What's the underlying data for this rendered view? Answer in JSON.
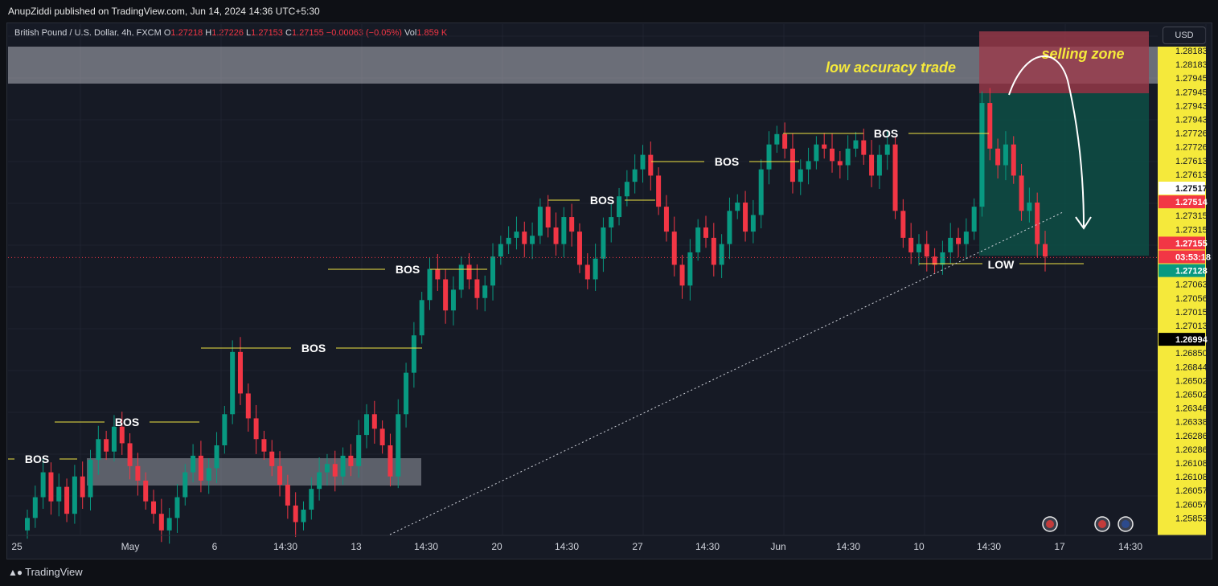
{
  "header": {
    "published": "AnupZiddi published on TradingView.com, Jun 14, 2024 14:36 UTC+5:30"
  },
  "legend": {
    "symbol": "British Pound / U.S. Dollar, 4h, FXCM",
    "o_label": "O",
    "o_value": "1.27218",
    "h_label": "H",
    "h_value": "1.27226",
    "l_label": "L",
    "l_value": "1.27153",
    "c_label": "C",
    "c_value": "1.27155",
    "change": "−0.00063 (−0.05%)",
    "vol_label": "Vol",
    "vol_value": "1.859 K"
  },
  "currency_button": "USD",
  "footer": {
    "brand": "TradingView"
  },
  "colors": {
    "up": "#089981",
    "down": "#f23645",
    "background": "#161a25",
    "annotation_yellow": "#f0e442",
    "label_yellow": "#f5e93b",
    "current_price_red": "#f23645",
    "teal_box": "#0d4f45",
    "red_box": "#9c3a4a"
  },
  "chart_data": {
    "type": "candlestick",
    "symbol": "British Pound / U.S. Dollar",
    "timeframe": "4h",
    "ylim": [
      1.2582,
      1.2828
    ],
    "x_ticks": [
      "25",
      "May",
      "6",
      "14:30",
      "13",
      "14:30",
      "20",
      "14:30",
      "27",
      "14:30",
      "Jun",
      "14:30",
      "10",
      "14:30",
      "17",
      "14:30"
    ],
    "price_labels": [
      "1.28183",
      "1.28183",
      "1.27945",
      "1.27945",
      "1.27943",
      "1.27943",
      "1.27726",
      "1.27726",
      "1.27613",
      "1.27613",
      "1.27517",
      "1.27514",
      "1.27315",
      "1.27315",
      "1.27155",
      "03:53:18",
      "1.27128",
      "1.27063",
      "1.27056",
      "1.27015",
      "1.27013",
      "1.26994",
      "1.26850",
      "1.26844",
      "1.26502",
      "1.26502",
      "1.26346",
      "1.26338",
      "1.26286",
      "1.26286",
      "1.26108",
      "1.26108",
      "1.26057",
      "1.26057",
      "1.25853"
    ],
    "current_price": 1.27155,
    "countdown": "03:53:18",
    "closes": [
      1.259,
      1.26,
      1.2612,
      1.2598,
      1.2605,
      1.2592,
      1.261,
      1.26,
      1.2618,
      1.2628,
      1.2622,
      1.2634,
      1.2626,
      1.2615,
      1.2608,
      1.2598,
      1.2592,
      1.2584,
      1.259,
      1.26,
      1.2612,
      1.262,
      1.2608,
      1.2614,
      1.2625,
      1.264,
      1.267,
      1.265,
      1.2638,
      1.2628,
      1.2622,
      1.2615,
      1.2606,
      1.2596,
      1.2588,
      1.2594,
      1.2604,
      1.2612,
      1.2616,
      1.261,
      1.262,
      1.2615,
      1.263,
      1.264,
      1.2633,
      1.2625,
      1.261,
      1.264,
      1.266,
      1.2678,
      1.2695,
      1.271,
      1.2705,
      1.269,
      1.27,
      1.2712,
      1.2705,
      1.2696,
      1.2702,
      1.2716,
      1.2722,
      1.2725,
      1.2728,
      1.2722,
      1.2726,
      1.274,
      1.273,
      1.2722,
      1.2735,
      1.2728,
      1.2712,
      1.2705,
      1.2715,
      1.273,
      1.2735,
      1.2745,
      1.2752,
      1.2758,
      1.2765,
      1.2755,
      1.274,
      1.2728,
      1.2712,
      1.2702,
      1.2718,
      1.273,
      1.2725,
      1.2712,
      1.2722,
      1.2738,
      1.2742,
      1.2728,
      1.2736,
      1.2758,
      1.277,
      1.2775,
      1.2768,
      1.2752,
      1.2758,
      1.2762,
      1.277,
      1.2768,
      1.2762,
      1.276,
      1.2768,
      1.2772,
      1.2765,
      1.2755,
      1.2765,
      1.277,
      1.2738,
      1.2725,
      1.2718,
      1.2722,
      1.2716,
      1.2712,
      1.2718,
      1.2725,
      1.2722,
      1.2728,
      1.274,
      1.279,
      1.2768,
      1.276,
      1.277,
      1.2755,
      1.2738,
      1.2742,
      1.2722,
      1.2716
    ],
    "annotations": {
      "bos": [
        "BOS",
        "BOS",
        "BOS",
        "BOS",
        "BOS",
        "BOS",
        "BOS"
      ],
      "low": "LOW",
      "low_accuracy": "low accuracy trade",
      "selling_zone": "selling zone"
    }
  }
}
